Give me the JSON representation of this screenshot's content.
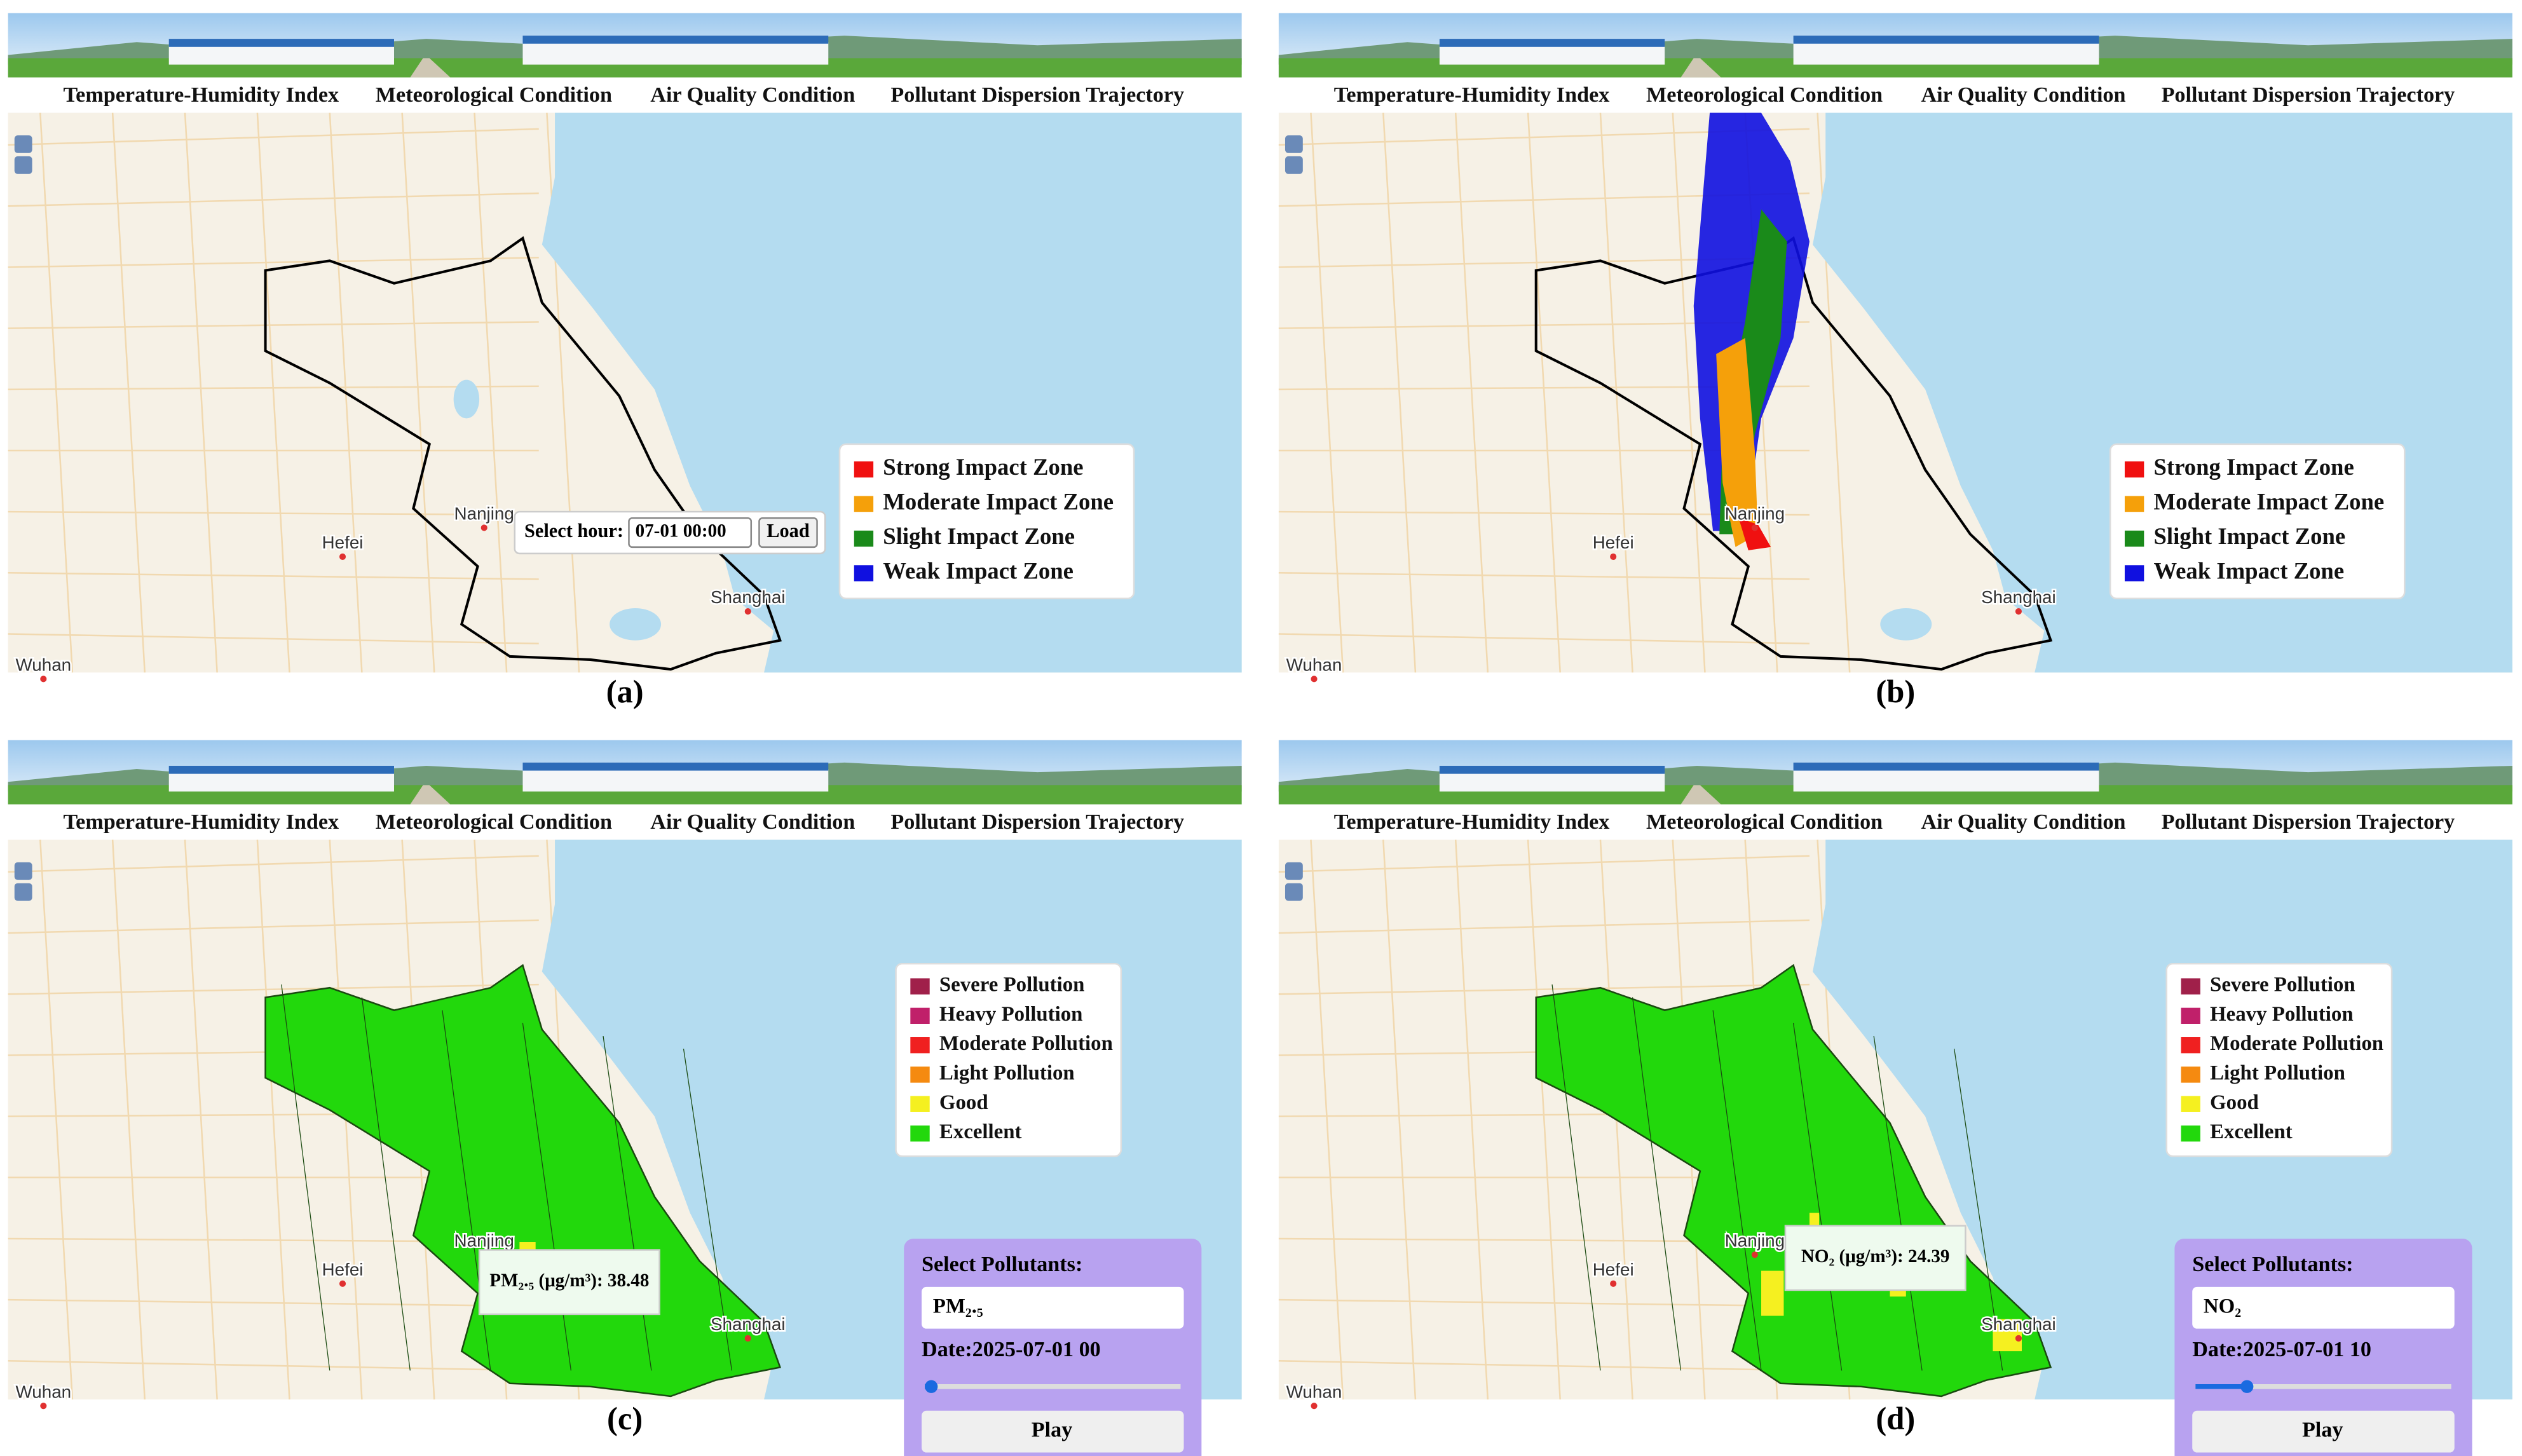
{
  "panels": [
    {
      "caption": "(a)",
      "nav": [
        "Temperature-Humidity Index",
        "Meteorological Condition",
        "Air Quality Condition",
        "Pollutant Dispersion Trajectory"
      ],
      "map_labels": [
        "Hefei",
        "Nanjing",
        "Shanghai",
        "Wuhan"
      ],
      "legend": [
        {
          "label": "Strong Impact Zone",
          "color": "#f01010"
        },
        {
          "label": "Moderate Impact Zone",
          "color": "#f5a00a"
        },
        {
          "label": "Slight Impact Zone",
          "color": "#1a8a1a"
        },
        {
          "label": "Weak Impact Zone",
          "color": "#1010e0"
        }
      ],
      "hour_control": {
        "label": "Select hour:",
        "value": "07-01 00:00",
        "button": "Load"
      }
    },
    {
      "caption": "(b)",
      "nav": [
        "Temperature-Humidity Index",
        "Meteorological Condition",
        "Air Quality Condition",
        "Pollutant Dispersion Trajectory"
      ],
      "map_labels": [
        "Hefei",
        "Nanjing",
        "Shanghai",
        "Wuhan"
      ],
      "legend": [
        {
          "label": "Strong Impact Zone",
          "color": "#f01010"
        },
        {
          "label": "Moderate Impact Zone",
          "color": "#f5a00a"
        },
        {
          "label": "Slight Impact Zone",
          "color": "#1a8a1a"
        },
        {
          "label": "Weak Impact Zone",
          "color": "#1010e0"
        }
      ]
    },
    {
      "caption": "(c)",
      "nav": [
        "Temperature-Humidity Index",
        "Meteorological Condition",
        "Air Quality Condition",
        "Pollutant Dispersion Trajectory"
      ],
      "map_labels": [
        "Hefei",
        "Nanjing",
        "Shanghai",
        "Wuhan"
      ],
      "legend": [
        {
          "label": "Severe Pollution",
          "color": "#a0204a"
        },
        {
          "label": "Heavy Pollution",
          "color": "#c0206a"
        },
        {
          "label": "Moderate Pollution",
          "color": "#f02020"
        },
        {
          "label": "Light Pollution",
          "color": "#f58a10"
        },
        {
          "label": "Good",
          "color": "#f5f020"
        },
        {
          "label": "Excellent",
          "color": "#22d80c"
        }
      ],
      "pollutant_control": {
        "title": "Select Pollutants:",
        "selected": "PM₂.₅",
        "date": "Date:2025-07-01 00",
        "button": "Play"
      },
      "tooltip": "PM₂.₅ (μg/m³): 38.48"
    },
    {
      "caption": "(d)",
      "nav": [
        "Temperature-Humidity Index",
        "Meteorological Condition",
        "Air Quality Condition",
        "Pollutant Dispersion Trajectory"
      ],
      "map_labels": [
        "Hefei",
        "Nanjing",
        "Shanghai",
        "Wuhan"
      ],
      "legend": [
        {
          "label": "Severe Pollution",
          "color": "#a0204a"
        },
        {
          "label": "Heavy Pollution",
          "color": "#c0206a"
        },
        {
          "label": "Moderate Pollution",
          "color": "#f02020"
        },
        {
          "label": "Light Pollution",
          "color": "#f58a10"
        },
        {
          "label": "Good",
          "color": "#f5f020"
        },
        {
          "label": "Excellent",
          "color": "#22d80c"
        }
      ],
      "pollutant_control": {
        "title": "Select Pollutants:",
        "selected": "NO₂",
        "date": "Date:2025-07-01 10",
        "button": "Play"
      },
      "tooltip": "NO₂ (μg/m³): 24.39"
    }
  ]
}
